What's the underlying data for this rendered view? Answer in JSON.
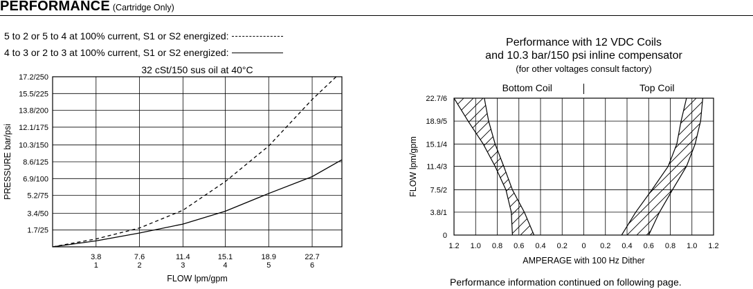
{
  "header": {
    "title": "PERFORMANCE",
    "subtitle": "(Cartridge Only)"
  },
  "legend": {
    "dashed": "5 to 2 or 5 to 4 at 100% current, S1 or S2 energized:",
    "solid": "4 to 3 or 2 to 3 at 100% current, S1 or S2 energized:"
  },
  "footer_note": "Performance information continued on following page.",
  "chart_data": [
    {
      "type": "line",
      "title": "32 cSt/150 sus oil at 40°C",
      "xlabel": "FLOW lpm/gpm",
      "ylabel": "PRESSURE bar/psi",
      "x_ticks": [
        {
          "value": 3.8,
          "lpm": "3.8",
          "gpm": "1"
        },
        {
          "value": 7.6,
          "lpm": "7.6",
          "gpm": "2"
        },
        {
          "value": 11.4,
          "lpm": "11.4",
          "gpm": "3"
        },
        {
          "value": 15.1,
          "lpm": "15.1",
          "gpm": "4"
        },
        {
          "value": 18.9,
          "lpm": "18.9",
          "gpm": "5"
        },
        {
          "value": 22.7,
          "lpm": "22.7",
          "gpm": "6"
        }
      ],
      "y_ticks": [
        {
          "value": 1.7,
          "label": "1.7/25"
        },
        {
          "value": 3.4,
          "label": "3.4/50"
        },
        {
          "value": 5.2,
          "label": "5.2/75"
        },
        {
          "value": 6.9,
          "label": "6.9/100"
        },
        {
          "value": 8.6,
          "label": "8.6/125"
        },
        {
          "value": 10.3,
          "label": "10.3/150"
        },
        {
          "value": 12.1,
          "label": "12.1/175"
        },
        {
          "value": 13.8,
          "label": "13.8/200"
        },
        {
          "value": 15.5,
          "label": "15.5/225"
        },
        {
          "value": 17.2,
          "label": "17.2/250"
        }
      ],
      "xlim": [
        0,
        25.3
      ],
      "ylim": [
        0,
        17.2
      ],
      "grid": true,
      "series": [
        {
          "name": "5 to 2 or 5 to 4 at 100% current, S1 or S2 energized",
          "style": "dashed",
          "x": [
            0,
            3.8,
            7.6,
            11.4,
            15.1,
            18.9,
            22.7,
            24.8
          ],
          "y": [
            0,
            0.8,
            1.9,
            3.7,
            6.6,
            10.2,
            14.9,
            17.2
          ]
        },
        {
          "name": "4 to 3 or 2 to 3 at 100% current, S1 or S2 energized",
          "style": "solid",
          "x": [
            0,
            3.8,
            7.6,
            11.4,
            15.1,
            18.9,
            22.7,
            25.3
          ],
          "y": [
            0,
            0.6,
            1.4,
            2.3,
            3.6,
            5.4,
            7.1,
            8.8
          ]
        }
      ]
    },
    {
      "type": "area",
      "title": "Performance with 12 VDC Coils",
      "title2": "and 10.3 bar/150 psi inline compensator",
      "subtitle": "(for other voltages consult factory)",
      "xlabel": "AMPERAGE with 100 Hz Dither",
      "ylabel": "FLOW lpm/gpm",
      "region_labels": [
        "Bottom Coil",
        "Top Coil"
      ],
      "x_ticks": [
        {
          "value": -1.2,
          "label": "1.2"
        },
        {
          "value": -1.0,
          "label": "1.0"
        },
        {
          "value": -0.8,
          "label": "0.8"
        },
        {
          "value": -0.6,
          "label": "0.6"
        },
        {
          "value": -0.4,
          "label": "0.4"
        },
        {
          "value": -0.2,
          "label": "0.2"
        },
        {
          "value": 0,
          "label": "0"
        },
        {
          "value": 0.2,
          "label": "0.2"
        },
        {
          "value": 0.4,
          "label": "0.4"
        },
        {
          "value": 0.6,
          "label": "0.6"
        },
        {
          "value": 0.8,
          "label": "0.8"
        },
        {
          "value": 1.0,
          "label": "1.0"
        },
        {
          "value": 1.2,
          "label": "1.2"
        }
      ],
      "y_ticks": [
        {
          "value": 0,
          "label": "0"
        },
        {
          "value": 3.8,
          "label": "3.8/1"
        },
        {
          "value": 7.5,
          "label": "7.5/2"
        },
        {
          "value": 11.4,
          "label": "11.4/3"
        },
        {
          "value": 15.1,
          "label": "15.1/4"
        },
        {
          "value": 18.9,
          "label": "18.9/5"
        },
        {
          "value": 22.7,
          "label": "22.7/6"
        }
      ],
      "xlim": [
        -1.2,
        1.2
      ],
      "ylim": [
        0,
        22.7
      ],
      "grid": true,
      "bands": [
        {
          "name": "Bottom Coil",
          "hatched": true,
          "edge_a": {
            "x": [
              -1.2,
              -1.07,
              -0.93,
              -0.82,
              -0.72,
              -0.67,
              -0.66
            ],
            "y": [
              22.7,
              18.9,
              15.1,
              11.4,
              7.5,
              3.8,
              0
            ]
          },
          "edge_b": {
            "x": [
              -0.92,
              -0.88,
              -0.82,
              -0.74,
              -0.66,
              -0.55,
              -0.46
            ],
            "y": [
              22.7,
              18.9,
              15.1,
              11.4,
              7.5,
              3.8,
              0
            ]
          }
        },
        {
          "name": "Top Coil",
          "hatched": true,
          "edge_a": {
            "x": [
              0.35,
              0.48,
              0.63,
              0.78,
              0.86,
              0.9,
              0.95
            ],
            "y": [
              0,
              3.8,
              7.5,
              11.4,
              15.1,
              18.9,
              22.7
            ]
          },
          "edge_b": {
            "x": [
              0.6,
              0.7,
              0.82,
              0.95,
              1.03,
              1.08,
              1.1
            ],
            "y": [
              0,
              3.8,
              7.5,
              11.4,
              15.1,
              18.9,
              22.7
            ]
          }
        }
      ]
    }
  ]
}
